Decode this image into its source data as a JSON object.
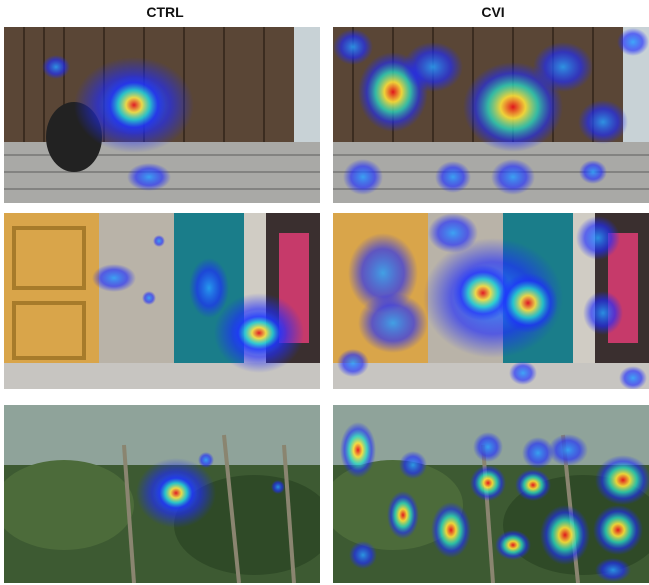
{
  "columns": [
    {
      "id": "ctrl",
      "label": "CTRL"
    },
    {
      "id": "cvi",
      "label": "CVI"
    }
  ],
  "rows": [
    {
      "scene": "steps",
      "description_icon": "person-on-steps-photo"
    },
    {
      "scene": "doors",
      "description_icon": "doorway-photo"
    },
    {
      "scene": "palms",
      "description_icon": "palm-forest-photo"
    }
  ],
  "colors": {
    "heat_low": "#1e2bff",
    "heat_mid": "#27e0c8",
    "heat_high": "#ffe23a",
    "heat_peak": "#e8141c"
  }
}
